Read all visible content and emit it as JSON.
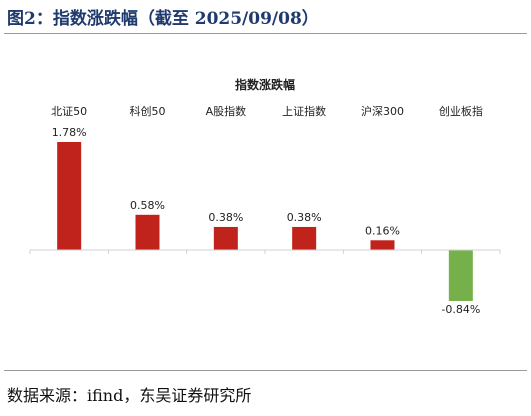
{
  "figure": {
    "title": "图2：指数涨跌幅（截至 2025/09/08）",
    "source": "数据来源：ifind，东吴证券研究所"
  },
  "colors": {
    "positive": "#c0221c",
    "negative": "#76b04a",
    "title": "#1f3a6d",
    "axis": "#d0d0d0"
  },
  "chart_data": {
    "type": "bar",
    "title": "指数涨跌幅",
    "categories": [
      "北证50",
      "科创50",
      "A股指数",
      "上证指数",
      "沪深300",
      "创业板指"
    ],
    "values": [
      1.78,
      0.58,
      0.38,
      0.38,
      0.16,
      -0.84
    ],
    "value_labels": [
      "1.78%",
      "0.58%",
      "0.38%",
      "0.38%",
      "0.16%",
      "-0.84%"
    ],
    "xlabel": "",
    "ylabel": "",
    "ylim": [
      -0.84,
      1.78
    ],
    "grid": false,
    "legend": "none",
    "category_labels_position": "top"
  }
}
